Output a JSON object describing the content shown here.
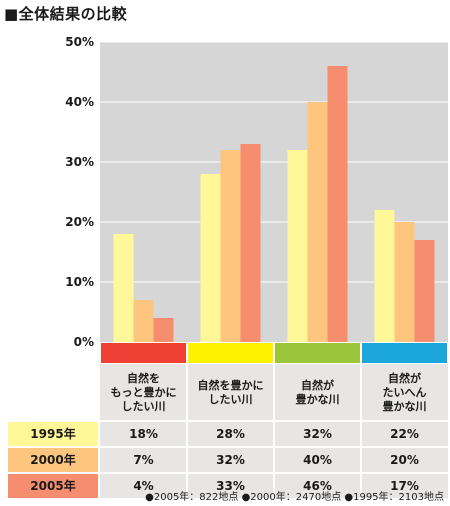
{
  "title": "■全体結果の比較",
  "note": "●2005年：822地点 ●2000年：2470地点 ●1995年：2103地点",
  "colors": {
    "plot_bg": "#d6d6d6",
    "table_bg": "#e8e6e4",
    "grid": "#ffffff",
    "category_strips": [
      "#ef4036",
      "#fff200",
      "#9bc63c",
      "#1ba6dc"
    ],
    "series": [
      "#fff798",
      "#fdc57e",
      "#f58d6e"
    ]
  },
  "chart_data": {
    "type": "bar",
    "categories": [
      [
        "自然を",
        "もっと豊かに",
        "したい川"
      ],
      [
        "自然を豊かに",
        "したい川"
      ],
      [
        "自然が",
        "豊かな川"
      ],
      [
        "自然が",
        "たいへん",
        "豊かな川"
      ]
    ],
    "series": [
      {
        "name": "1995年",
        "values": [
          18,
          28,
          32,
          22
        ],
        "labels": [
          "18%",
          "28%",
          "32%",
          "22%"
        ]
      },
      {
        "name": "2000年",
        "values": [
          7,
          32,
          40,
          20
        ],
        "labels": [
          "7%",
          "32%",
          "40%",
          "20%"
        ]
      },
      {
        "name": "2005年",
        "values": [
          4,
          33,
          46,
          17
        ],
        "labels": [
          "4%",
          "33%",
          "46%",
          "17%"
        ]
      }
    ],
    "ylim": [
      0,
      50
    ],
    "yticks": [
      0,
      10,
      20,
      30,
      40,
      50
    ],
    "ytick_labels": [
      "0%",
      "10%",
      "20%",
      "30%",
      "40%",
      "50%"
    ],
    "grid": true
  }
}
